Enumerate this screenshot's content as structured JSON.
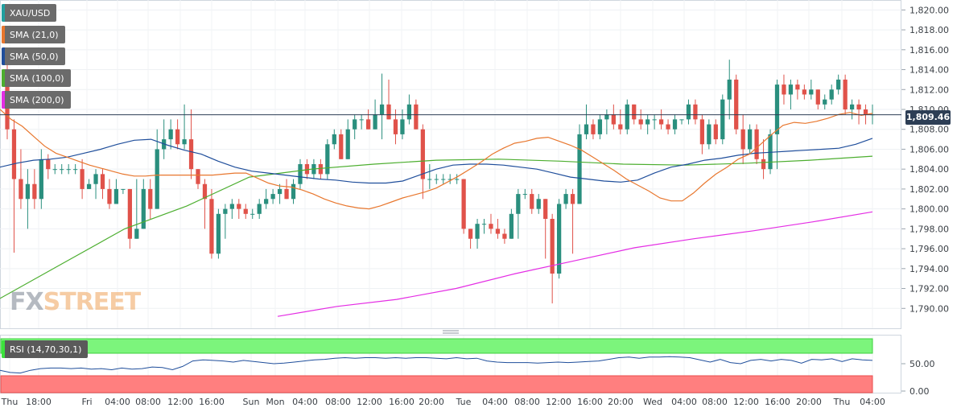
{
  "symbol": "XAU/USD",
  "indicators": [
    {
      "label": "SMA (21,0)",
      "color": "#e8772e"
    },
    {
      "label": "SMA (50,0)",
      "color": "#1f4e9b"
    },
    {
      "label": "SMA (100,0)",
      "color": "#4cae2f"
    },
    {
      "label": "SMA (200,0)",
      "color": "#e42de4"
    }
  ],
  "rsi_label": "RSI (14,70,30,1)",
  "last_price": "1,809.46",
  "watermark": {
    "part1": "FX",
    "part2": "STREET"
  },
  "chart_data": {
    "type": "candlestick",
    "candles": [
      [
        1813.0,
        1815.0,
        1807.0,
        1808.0
      ],
      [
        1808.0,
        1809.0,
        1795.6,
        1803.0
      ],
      [
        1803.0,
        1806.0,
        1800.0,
        1801.0
      ],
      [
        1801.0,
        1804.0,
        1798.0,
        1802.5
      ],
      [
        1802.5,
        1804.0,
        1800.0,
        1801.0
      ],
      [
        1801.0,
        1806.0,
        1800.0,
        1805.0
      ],
      [
        1805.0,
        1805.5,
        1803.0,
        1804.0
      ],
      [
        1804.0,
        1804.5,
        1803.5,
        1804.0
      ],
      [
        1804.0,
        1804.5,
        1803.5,
        1804.0
      ],
      [
        1804.0,
        1804.5,
        1803.5,
        1804.0
      ],
      [
        1804.0,
        1804.5,
        1803.5,
        1804.0
      ],
      [
        1804.0,
        1805.0,
        1801.0,
        1802.0
      ],
      [
        1802.0,
        1803.0,
        1802.0,
        1802.5
      ],
      [
        1802.5,
        1804.0,
        1801.0,
        1803.5
      ],
      [
        1803.5,
        1804.0,
        1801.0,
        1802.0
      ],
      [
        1802.0,
        1803.0,
        1800.0,
        1800.5
      ],
      [
        1800.5,
        1803.0,
        1800.5,
        1802.0
      ],
      [
        1802.0,
        1802.0,
        1801.5,
        1802.0
      ],
      [
        1802.0,
        1802.0,
        1796.0,
        1797.0
      ],
      [
        1797.0,
        1803.0,
        1797.0,
        1798.0
      ],
      [
        1798.0,
        1803.0,
        1798.0,
        1802.0
      ],
      [
        1802.0,
        1803.0,
        1799.0,
        1800.0
      ],
      [
        1800.0,
        1808.0,
        1800.0,
        1806.0
      ],
      [
        1806.0,
        1809.0,
        1805.0,
        1807.0
      ],
      [
        1807.0,
        1809.0,
        1806.0,
        1808.0
      ],
      [
        1808.0,
        1809.0,
        1806.0,
        1806.5
      ],
      [
        1806.5,
        1810.5,
        1806.0,
        1807.0
      ],
      [
        1807.0,
        1810.0,
        1803.0,
        1804.0
      ],
      [
        1804.0,
        1804.0,
        1802.0,
        1802.5
      ],
      [
        1802.5,
        1803.0,
        1798.0,
        1801.0
      ],
      [
        1801.0,
        1802.0,
        1795.0,
        1795.5
      ],
      [
        1795.5,
        1800.0,
        1795.0,
        1799.5
      ],
      [
        1799.5,
        1800.5,
        1797.0,
        1800.0
      ],
      [
        1800.0,
        1801.0,
        1799.0,
        1800.5
      ],
      [
        1800.5,
        1801.0,
        1799.0,
        1800.0
      ],
      [
        1800.0,
        1800.5,
        1799.0,
        1799.5
      ],
      [
        1799.5,
        1800.0,
        1799.0,
        1799.5
      ],
      [
        1799.5,
        1801.0,
        1799.0,
        1800.5
      ],
      [
        1800.5,
        1802.0,
        1800.0,
        1801.0
      ],
      [
        1801.0,
        1802.0,
        1800.5,
        1801.5
      ],
      [
        1801.5,
        1802.5,
        1800.5,
        1802.0
      ],
      [
        1802.0,
        1803.0,
        1801.0,
        1801.0
      ],
      [
        1801.0,
        1803.0,
        1800.5,
        1802.5
      ],
      [
        1802.5,
        1805.0,
        1802.0,
        1804.5
      ],
      [
        1804.5,
        1805.0,
        1803.0,
        1803.5
      ],
      [
        1803.5,
        1805.0,
        1803.0,
        1804.5
      ],
      [
        1804.5,
        1805.0,
        1803.0,
        1803.5
      ],
      [
        1803.5,
        1807.0,
        1803.0,
        1806.5
      ],
      [
        1806.5,
        1808.0,
        1806.0,
        1807.5
      ],
      [
        1807.5,
        1808.0,
        1805.0,
        1805.0
      ],
      [
        1805.0,
        1809.0,
        1805.0,
        1808.0
      ],
      [
        1808.0,
        1809.5,
        1807.0,
        1809.0
      ],
      [
        1809.0,
        1809.5,
        1808.0,
        1809.0
      ],
      [
        1809.0,
        1810.0,
        1808.0,
        1808.0
      ],
      [
        1808.0,
        1811.0,
        1808.0,
        1809.5
      ],
      [
        1809.5,
        1813.6,
        1807.0,
        1810.5
      ],
      [
        1810.5,
        1813.0,
        1809.0,
        1809.0
      ],
      [
        1809.0,
        1810.0,
        1806.5,
        1807.5
      ],
      [
        1807.5,
        1810.0,
        1807.0,
        1809.0
      ],
      [
        1809.0,
        1811.5,
        1808.5,
        1810.5
      ],
      [
        1810.5,
        1811.0,
        1808.0,
        1808.0
      ],
      [
        1808.0,
        1808.5,
        1801.0,
        1803.0
      ],
      [
        1803.0,
        1804.5,
        1802.0,
        1803.0
      ],
      [
        1803.0,
        1803.5,
        1802.5,
        1803.0
      ],
      [
        1803.0,
        1803.5,
        1802.5,
        1803.0
      ],
      [
        1803.0,
        1803.5,
        1802.5,
        1803.0
      ],
      [
        1803.0,
        1803.5,
        1802.5,
        1803.0
      ],
      [
        1803.0,
        1803.0,
        1797.5,
        1798.0
      ],
      [
        1798.0,
        1798.0,
        1796.0,
        1797.0
      ],
      [
        1797.0,
        1799.0,
        1796.0,
        1798.5
      ],
      [
        1798.5,
        1799.0,
        1797.5,
        1798.5
      ],
      [
        1798.5,
        1799.5,
        1797.5,
        1798.0
      ],
      [
        1798.0,
        1799.0,
        1797.0,
        1797.5
      ],
      [
        1797.5,
        1798.0,
        1796.5,
        1797.0
      ],
      [
        1797.0,
        1800.0,
        1797.0,
        1799.5
      ],
      [
        1799.5,
        1802.0,
        1797.0,
        1801.5
      ],
      [
        1801.5,
        1802.0,
        1801.0,
        1801.5
      ],
      [
        1801.5,
        1802.0,
        1799.5,
        1800.0
      ],
      [
        1800.0,
        1801.5,
        1799.5,
        1801.0
      ],
      [
        1801.0,
        1801.0,
        1795.0,
        1799.0
      ],
      [
        1799.0,
        1799.5,
        1790.5,
        1793.5
      ],
      [
        1793.5,
        1801.0,
        1793.0,
        1800.5
      ],
      [
        1800.5,
        1802.0,
        1800.0,
        1801.5
      ],
      [
        1801.5,
        1802.0,
        1795.5,
        1800.5
      ],
      [
        1800.5,
        1808.5,
        1800.5,
        1807.5
      ],
      [
        1807.5,
        1810.5,
        1807.0,
        1808.5
      ],
      [
        1808.5,
        1809.0,
        1807.0,
        1807.5
      ],
      [
        1807.5,
        1809.5,
        1807.0,
        1809.0
      ],
      [
        1809.0,
        1810.0,
        1807.5,
        1809.5
      ],
      [
        1809.5,
        1810.5,
        1808.0,
        1808.5
      ],
      [
        1808.5,
        1810.0,
        1807.5,
        1808.0
      ],
      [
        1808.0,
        1811.0,
        1807.5,
        1810.5
      ],
      [
        1810.5,
        1810.5,
        1808.5,
        1809.0
      ],
      [
        1809.0,
        1810.0,
        1808.0,
        1808.5
      ],
      [
        1808.5,
        1809.5,
        1807.5,
        1809.0
      ],
      [
        1809.0,
        1809.5,
        1808.0,
        1809.0
      ],
      [
        1809.0,
        1810.0,
        1808.0,
        1808.5
      ],
      [
        1808.5,
        1809.0,
        1807.5,
        1808.0
      ],
      [
        1808.0,
        1809.5,
        1807.5,
        1809.0
      ],
      [
        1809.0,
        1809.0,
        1808.5,
        1809.0
      ],
      [
        1809.0,
        1811.0,
        1808.5,
        1810.5
      ],
      [
        1810.5,
        1811.0,
        1808.5,
        1809.0
      ],
      [
        1809.0,
        1809.5,
        1805.5,
        1806.5
      ],
      [
        1806.5,
        1809.0,
        1806.0,
        1808.5
      ],
      [
        1808.5,
        1809.0,
        1806.5,
        1807.0
      ],
      [
        1807.0,
        1811.5,
        1806.5,
        1811.0
      ],
      [
        1811.0,
        1815.0,
        1809.0,
        1813.0
      ],
      [
        1813.0,
        1813.5,
        1807.5,
        1808.0
      ],
      [
        1808.0,
        1809.5,
        1804.5,
        1806.0
      ],
      [
        1806.0,
        1808.5,
        1805.5,
        1808.0
      ],
      [
        1808.0,
        1808.5,
        1804.5,
        1805.0
      ],
      [
        1805.0,
        1807.0,
        1803.0,
        1804.0
      ],
      [
        1804.0,
        1808.0,
        1803.5,
        1807.5
      ],
      [
        1807.5,
        1813.0,
        1804.0,
        1812.5
      ],
      [
        1812.5,
        1813.5,
        1810.5,
        1811.5
      ],
      [
        1811.5,
        1813.0,
        1810.0,
        1812.5
      ],
      [
        1812.5,
        1813.0,
        1811.0,
        1812.0
      ],
      [
        1812.0,
        1812.5,
        1811.0,
        1811.5
      ],
      [
        1811.5,
        1813.0,
        1811.0,
        1812.0
      ],
      [
        1812.0,
        1812.0,
        1810.0,
        1810.5
      ],
      [
        1810.5,
        1811.5,
        1810.0,
        1811.0
      ],
      [
        1811.0,
        1812.5,
        1810.5,
        1812.0
      ],
      [
        1812.0,
        1813.5,
        1811.5,
        1813.0
      ],
      [
        1813.0,
        1813.5,
        1809.5,
        1810.0
      ],
      [
        1810.0,
        1811.0,
        1809.0,
        1810.5
      ],
      [
        1810.5,
        1811.0,
        1808.5,
        1810.0
      ],
      [
        1810.0,
        1810.5,
        1808.5,
        1809.5
      ],
      [
        1809.5,
        1810.5,
        1808.5,
        1809.5
      ]
    ],
    "sma21": [
      1810.0,
      1809.0,
      1808.3,
      1807.3,
      1806.3,
      1805.6,
      1805.2,
      1804.8,
      1804.4,
      1804.1,
      1803.8,
      1803.5,
      1803.3,
      1803.3,
      1803.4,
      1803.4,
      1803.4,
      1803.4,
      1803.4,
      1803.4,
      1803.5,
      1803.6,
      1803.6,
      1803.1,
      1802.6,
      1802.3,
      1802.2,
      1801.9,
      1801.5,
      1801.0,
      1800.6,
      1800.3,
      1800.1,
      1800.0,
      1800.3,
      1800.7,
      1801.1,
      1801.4,
      1801.7,
      1802.1,
      1802.7,
      1803.3,
      1804.0,
      1804.7,
      1805.5,
      1806.1,
      1806.6,
      1806.8,
      1807.1,
      1807.2,
      1806.8,
      1806.4,
      1805.9,
      1805.2,
      1804.5,
      1803.8,
      1803.0,
      1802.4,
      1801.8,
      1801.1,
      1800.8,
      1800.8,
      1801.6,
      1802.6,
      1803.5,
      1804.2,
      1805.0,
      1805.5,
      1806.5,
      1807.5,
      1808.4,
      1808.7,
      1808.6,
      1808.8,
      1809.1,
      1809.5,
      1809.7,
      1809.4,
      1809.6
    ],
    "sma50": [
      1804.2,
      1804.6,
      1804.9,
      1805.0,
      1805.2,
      1805.6,
      1806.0,
      1806.5,
      1806.9,
      1807.0,
      1806.4,
      1805.9,
      1805.5,
      1804.8,
      1804.2,
      1803.8,
      1803.6,
      1803.4,
      1803.2,
      1803.0,
      1802.9,
      1802.7,
      1802.6,
      1802.6,
      1802.8,
      1803.4,
      1804.0,
      1804.4,
      1804.5,
      1804.5,
      1804.4,
      1804.2,
      1804.0,
      1803.6,
      1803.2,
      1803.0,
      1802.8,
      1802.7,
      1802.9,
      1803.6,
      1804.2,
      1804.5,
      1804.9,
      1805.1,
      1805.4,
      1805.6,
      1805.7,
      1805.8,
      1805.9,
      1806.0,
      1806.1,
      1806.5,
      1807.1
    ],
    "sma100": [
      1791.0,
      1794.5,
      1798.0,
      1800.3,
      1803.2,
      1804.0,
      1804.5,
      1804.9,
      1805.0,
      1804.8,
      1804.5,
      1804.4,
      1804.6,
      1804.9,
      1805.3
    ],
    "sma200": [
      1789.2,
      1790.2,
      1790.9,
      1792.0,
      1793.5,
      1794.8,
      1796.1,
      1797.0,
      1797.8,
      1798.7,
      1799.7
    ],
    "rsi": [
      38,
      34,
      33,
      38,
      41,
      42,
      42,
      41,
      42,
      40,
      41,
      39,
      42,
      40,
      41,
      44,
      43,
      39,
      45,
      55,
      57,
      56,
      55,
      53,
      56,
      54,
      52,
      50,
      51,
      53,
      55,
      57,
      58,
      60,
      61,
      60,
      61,
      61,
      60,
      61,
      60,
      61,
      61,
      60,
      59,
      61,
      59,
      60,
      55,
      53,
      52,
      52,
      52,
      51,
      52,
      53,
      52,
      53,
      54,
      55,
      58,
      61,
      62,
      60,
      62,
      62,
      63,
      62,
      61,
      57,
      53,
      58,
      52,
      50,
      56,
      58,
      55,
      58,
      56,
      51,
      58,
      57,
      59,
      54,
      59,
      57,
      56
    ],
    "y_ticks": [
      "1,820.00",
      "1,818.00",
      "1,816.00",
      "1,814.00",
      "1,812.00",
      "1,810.00",
      "1,808.00",
      "1,806.00",
      "1,804.00",
      "1,802.00",
      "1,800.00",
      "1,798.00",
      "1,796.00",
      "1,794.00",
      "1,792.00",
      "1,790.00"
    ],
    "ylim": [
      1788,
      1821
    ],
    "rsi_ticks": [
      "50.00",
      "0.00"
    ],
    "x_labels": [
      "Thu",
      "18:00",
      "Fri",
      "04:00",
      "08:00",
      "12:00",
      "16:00",
      "Sun",
      "Mon",
      "04:00",
      "08:00",
      "12:00",
      "16:00",
      "20:00",
      "Tue",
      "04:00",
      "08:00",
      "12:00",
      "16:00",
      "20:00",
      "Wed",
      "04:00",
      "08:00",
      "12:00",
      "16:00",
      "20:00",
      "Thu",
      "04:00"
    ]
  }
}
